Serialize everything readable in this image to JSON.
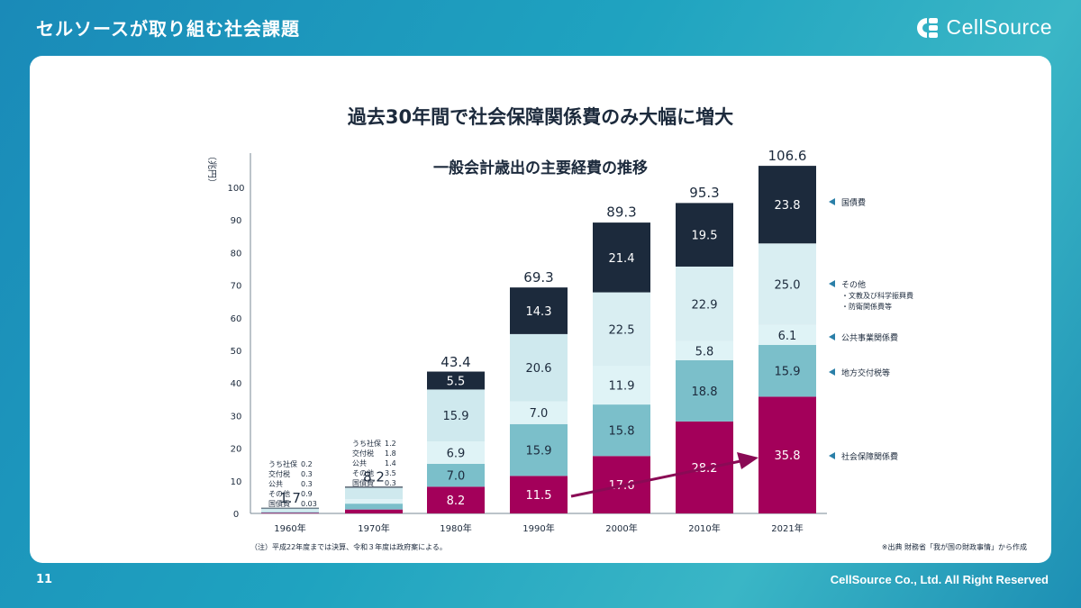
{
  "header": {
    "title": "セルソースが取り組む社会課題",
    "logo_text": "CellSource"
  },
  "footer": {
    "page_number": "11",
    "copyright": "CellSource Co., Ltd. All Right Reserved"
  },
  "colors": {
    "social_security": "#a3005a",
    "local_tax": "#7bbfca",
    "public_works": "#dff3f6",
    "other": "#cfe9ee",
    "national_debt": "#1c2a3c",
    "base": "#b6dde4",
    "arrow": "#8a0a55"
  },
  "chart_data": {
    "type": "bar",
    "stacked": true,
    "main_title": "過去30年間で社会保障関係費のみ大幅に増大",
    "title": "一般会計歳出の主要経費の推移",
    "ylabel": "（兆円）",
    "ylim": [
      0,
      110
    ],
    "yticks": [
      0,
      10,
      20,
      30,
      40,
      50,
      60,
      70,
      80,
      90,
      100
    ],
    "categories": [
      "1960年",
      "1970年",
      "1980年",
      "1990年",
      "2000年",
      "2010年",
      "2021年"
    ],
    "totals": [
      "1.7",
      "8.2",
      "43.4",
      "69.3",
      "89.3",
      "95.3",
      "106.6"
    ],
    "total_values": [
      1.7,
      8.2,
      43.4,
      69.3,
      89.3,
      95.3,
      106.6
    ],
    "series": [
      {
        "key": "social_security",
        "name": "社会保障関係費",
        "values": [
          0.2,
          1.2,
          8.2,
          11.5,
          17.6,
          28.2,
          35.8
        ],
        "labels": [
          "",
          "",
          "8.2",
          "11.5",
          "17.6",
          "28.2",
          "35.8"
        ]
      },
      {
        "key": "local_tax",
        "name": "地方交付税等",
        "values": [
          0.3,
          1.8,
          7.0,
          15.9,
          15.8,
          18.8,
          15.9
        ],
        "labels": [
          "",
          "",
          "7.0",
          "15.9",
          "15.8",
          "18.8",
          "15.9"
        ]
      },
      {
        "key": "public_works",
        "name": "公共事業関係費",
        "values": [
          0.3,
          1.4,
          6.9,
          7.0,
          11.9,
          5.8,
          6.1
        ],
        "labels": [
          "",
          "",
          "6.9",
          "7.0",
          "11.9",
          "5.8",
          "6.1"
        ]
      },
      {
        "key": "other",
        "name": "その他",
        "values": [
          0.9,
          3.5,
          15.9,
          20.6,
          22.5,
          22.9,
          25.0
        ],
        "labels": [
          "",
          "",
          "15.9",
          "20.6",
          "22.5",
          "22.9",
          "25.0"
        ]
      },
      {
        "key": "national_debt",
        "name": "国債費",
        "values": [
          0.03,
          0.3,
          5.5,
          14.3,
          21.4,
          19.5,
          23.8
        ],
        "labels": [
          "",
          "",
          "5.5",
          "14.3",
          "21.4",
          "19.5",
          "23.8"
        ]
      }
    ],
    "legend": [
      {
        "key": "national_debt",
        "label": "国債費",
        "sub": []
      },
      {
        "key": "other",
        "label": "その他",
        "sub": [
          "・文教及び科学振興費",
          "・防衛関係費等"
        ]
      },
      {
        "key": "public_works",
        "label": "公共事業関係費",
        "sub": []
      },
      {
        "key": "local_tax",
        "label": "地方交付税等",
        "sub": []
      },
      {
        "key": "social_security",
        "label": "社会保障関係費",
        "sub": []
      }
    ],
    "breakdowns": [
      {
        "category": "1960年",
        "rows": [
          [
            "うち社保",
            "0.2"
          ],
          [
            "交付税",
            "0.3"
          ],
          [
            "公共",
            "0.3"
          ],
          [
            "その他",
            "0.9"
          ],
          [
            "国債費",
            "0.03"
          ]
        ]
      },
      {
        "category": "1970年",
        "rows": [
          [
            "うち社保",
            "1.2"
          ],
          [
            "交付税",
            "1.8"
          ],
          [
            "公共",
            "1.4"
          ],
          [
            "その他",
            "3.5"
          ],
          [
            "国債費",
            "0.3"
          ]
        ]
      }
    ],
    "note": "（注）平成22年度までは決算、令和３年度は政府案による。",
    "source": "※出典 財務省「我が国の財政事情」から作成"
  }
}
